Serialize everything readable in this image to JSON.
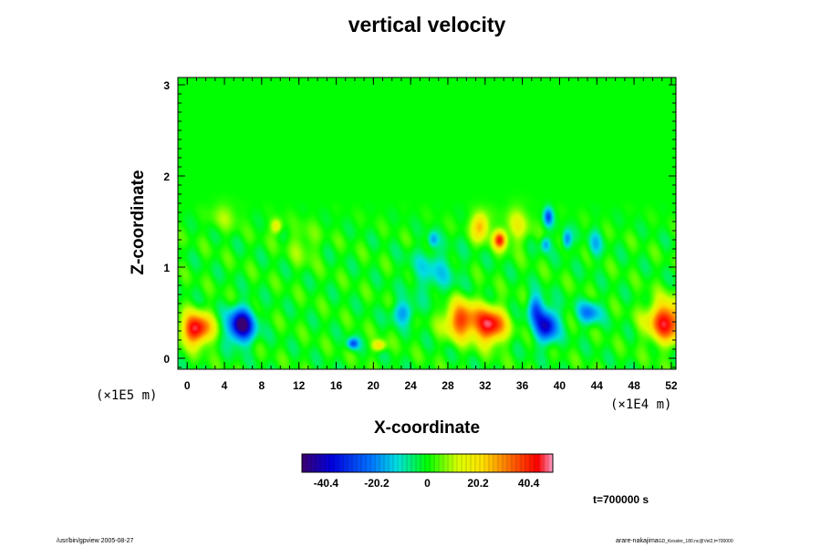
{
  "chart_data": {
    "type": "heatmap",
    "title": "vertical velocity",
    "xlabel": "X-coordinate",
    "ylabel": "Z-coordinate",
    "x_unit": "(×1E4 m)",
    "y_unit": "(×1E5 m)",
    "xlim": [
      -1,
      52.5
    ],
    "ylim": [
      -0.12,
      3.08
    ],
    "x_ticks": [
      "0",
      "4",
      "8",
      "12",
      "16",
      "20",
      "24",
      "28",
      "32",
      "36",
      "40",
      "44",
      "48",
      "52"
    ],
    "y_ticks": [
      "0",
      "1",
      "2",
      "3"
    ],
    "colorbar": {
      "range": [
        -50,
        50
      ],
      "ticks": [
        "-40.4",
        "-20.2",
        "0",
        "20.2",
        "40.4"
      ]
    },
    "features": [
      {
        "x": 1,
        "z": 0.32,
        "value": 48,
        "sx": 1.6,
        "sz": 0.17
      },
      {
        "x": 5.8,
        "z": 0.36,
        "value": -52,
        "sx": 1.4,
        "sz": 0.18
      },
      {
        "x": 17.8,
        "z": 0.16,
        "value": -30,
        "sx": 0.6,
        "sz": 0.06
      },
      {
        "x": 20.6,
        "z": 0.14,
        "value": 24,
        "sx": 0.7,
        "sz": 0.06
      },
      {
        "x": 29.5,
        "z": 0.42,
        "value": 38,
        "sx": 1.8,
        "sz": 0.2
      },
      {
        "x": 32.6,
        "z": 0.36,
        "value": 46,
        "sx": 1.6,
        "sz": 0.19
      },
      {
        "x": 38.6,
        "z": 0.36,
        "value": -42,
        "sx": 1.2,
        "sz": 0.18
      },
      {
        "x": 37.4,
        "z": 0.55,
        "value": -25,
        "sx": 0.8,
        "sz": 0.15
      },
      {
        "x": 43.2,
        "z": 0.5,
        "value": -24,
        "sx": 1.2,
        "sz": 0.12
      },
      {
        "x": 51.5,
        "z": 0.4,
        "value": 44,
        "sx": 2.0,
        "sz": 0.22
      },
      {
        "x": 23.2,
        "z": 0.5,
        "value": -20,
        "sx": 1.2,
        "sz": 0.12
      },
      {
        "x": 26.5,
        "z": 0.95,
        "value": -12,
        "sx": 2.5,
        "sz": 0.25
      },
      {
        "x": 9.6,
        "z": 1.45,
        "value": 20,
        "sx": 0.6,
        "sz": 0.08
      },
      {
        "x": 33.6,
        "z": 1.3,
        "value": 40,
        "sx": 0.7,
        "sz": 0.1
      },
      {
        "x": 31.5,
        "z": 1.45,
        "value": 28,
        "sx": 0.9,
        "sz": 0.15
      },
      {
        "x": 38.8,
        "z": 1.55,
        "value": -30,
        "sx": 0.5,
        "sz": 0.1
      },
      {
        "x": 40.8,
        "z": 1.3,
        "value": -26,
        "sx": 0.5,
        "sz": 0.1
      },
      {
        "x": 38.5,
        "z": 1.25,
        "value": -20,
        "sx": 0.5,
        "sz": 0.08
      },
      {
        "x": 26.4,
        "z": 1.3,
        "value": -18,
        "sx": 0.5,
        "sz": 0.08
      },
      {
        "x": 43.8,
        "z": 1.25,
        "value": -14,
        "sx": 0.7,
        "sz": 0.15
      },
      {
        "x": 35.5,
        "z": 1.45,
        "value": 14,
        "sx": 1.3,
        "sz": 0.2
      },
      {
        "x": 4,
        "z": 1.55,
        "value": 8,
        "sx": 1.5,
        "sz": 0.15
      },
      {
        "x": 12.5,
        "z": 1.25,
        "value": 8,
        "sx": 1.5,
        "sz": 0.2
      }
    ]
  },
  "time_label": "t=700000 s",
  "footer_left": "/usr/bin/gpview 2005-08-27",
  "footer_right_main": "arare-nakajima",
  "footer_right_small": "GD_Kessler_180.nc@Vel2,t=700000"
}
